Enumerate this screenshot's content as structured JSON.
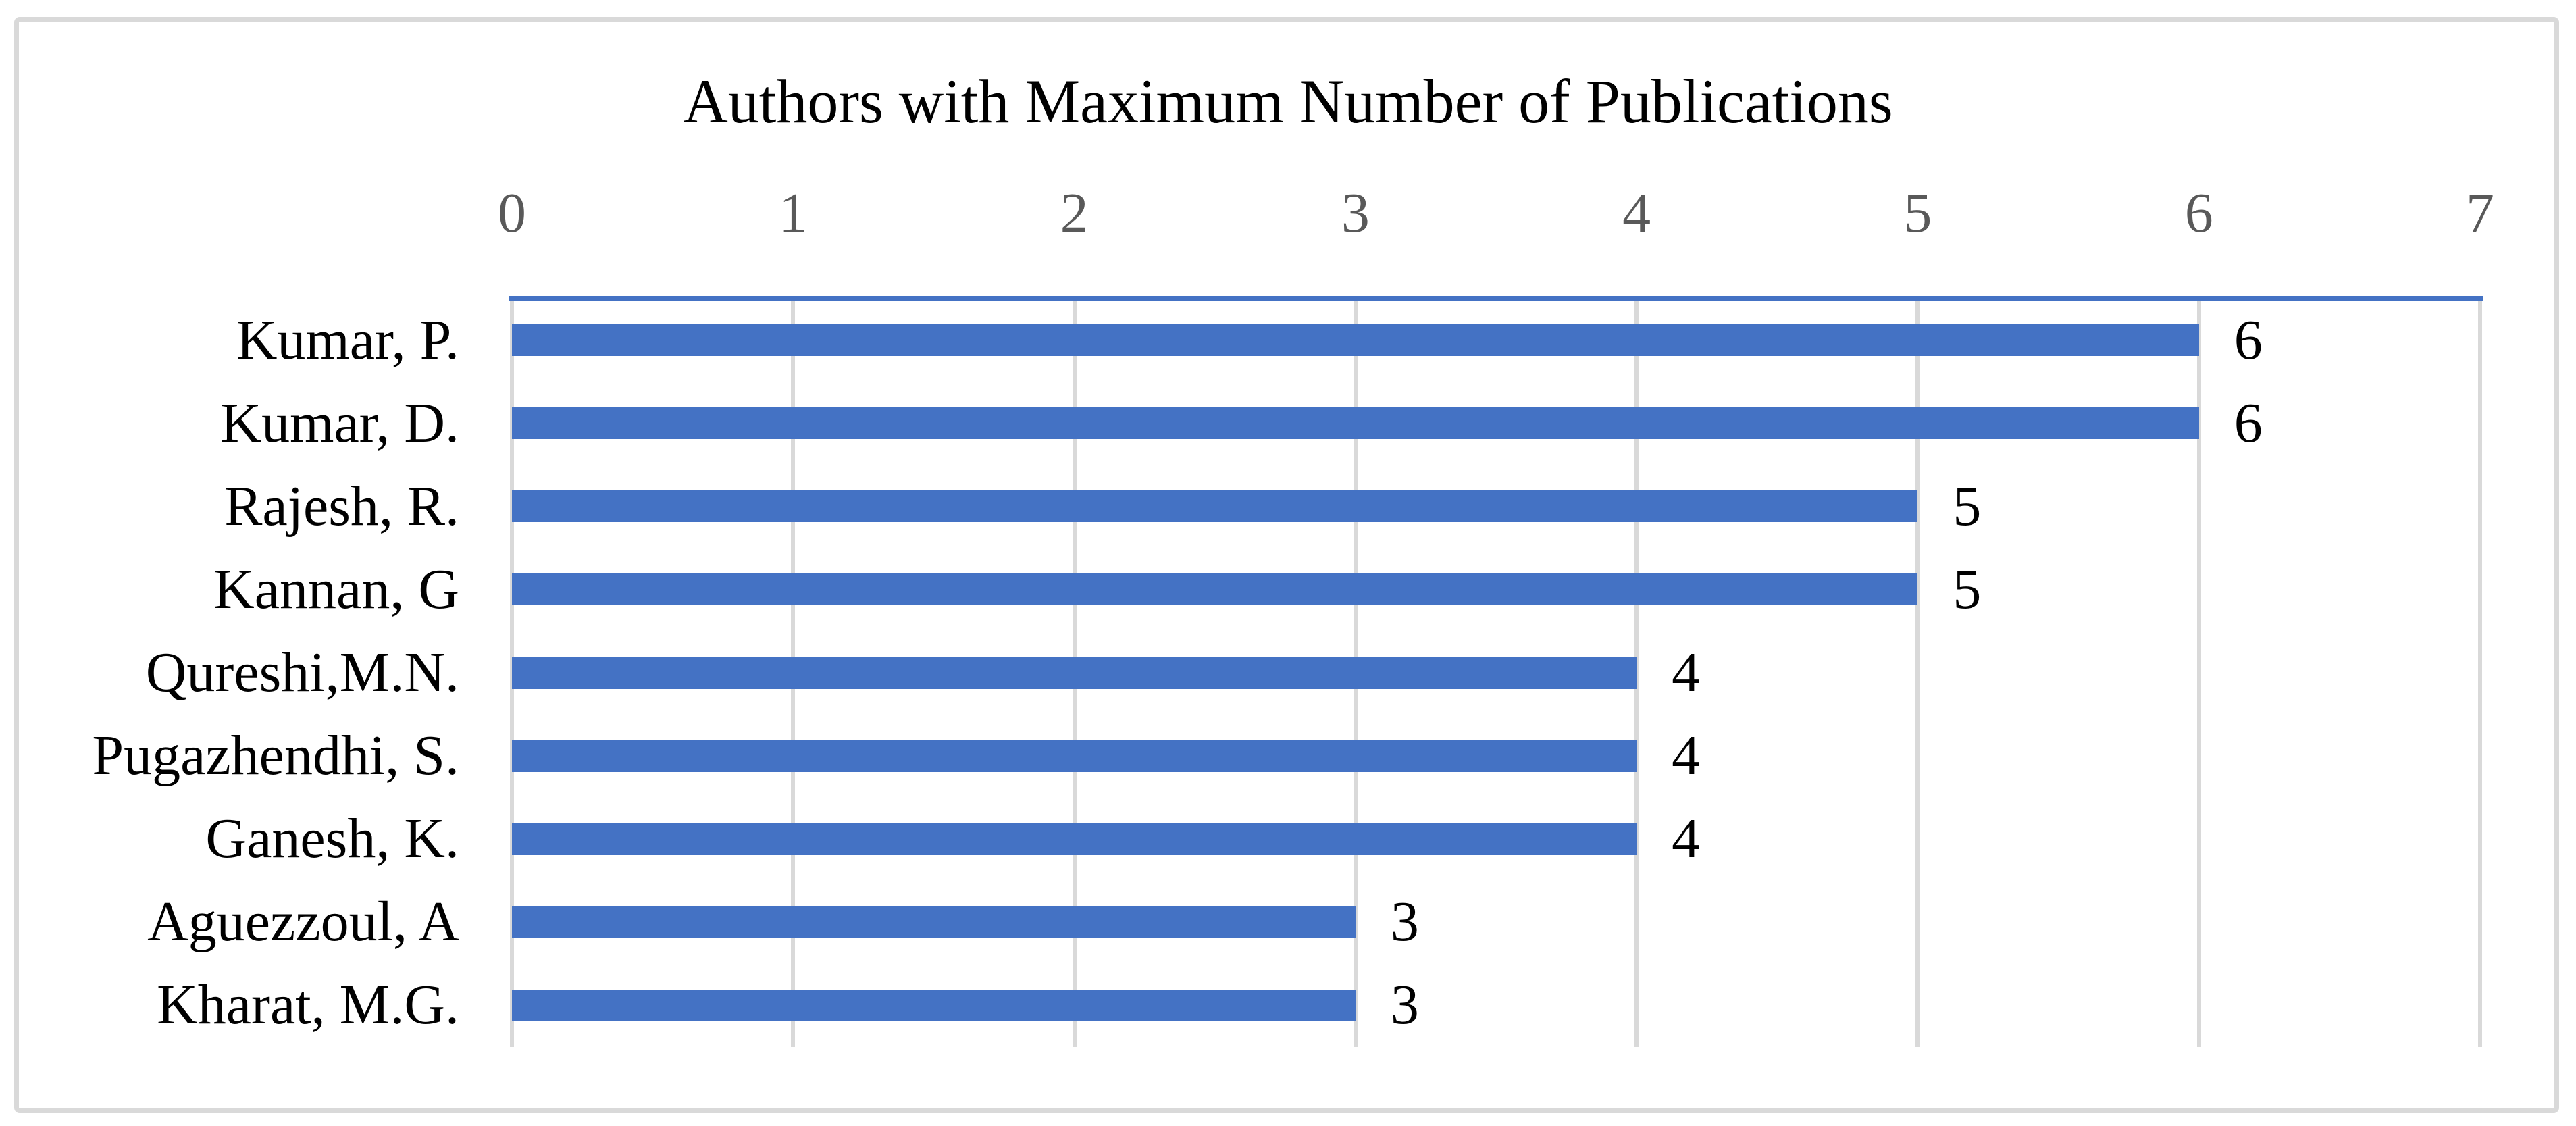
{
  "chart_data": {
    "type": "bar",
    "orientation": "horizontal",
    "title": "Authors with Maximum Number of Publications",
    "categories": [
      "Kumar, P.",
      "Kumar, D.",
      "Rajesh, R.",
      "Kannan, G",
      "Qureshi,M.N.",
      "Pugazhendhi, S.",
      "Ganesh, K.",
      "Aguezzoul, A",
      "Kharat, M.G."
    ],
    "values": [
      6,
      6,
      5,
      5,
      4,
      4,
      4,
      3,
      3
    ],
    "data_labels": [
      "6",
      "6",
      "5",
      "5",
      "4",
      "4",
      "4",
      "3",
      "3"
    ],
    "x_ticks": [
      "0",
      "1",
      "2",
      "3",
      "4",
      "5",
      "6",
      "7"
    ],
    "xlim": [
      0,
      7
    ],
    "value_axis_position": "top",
    "grid": true,
    "legend": "none",
    "colors": {
      "bar": "#4472C4",
      "axis_line": "#4472C4",
      "gridline": "#D9D9D9",
      "figure_border": "#D9D9D9",
      "tick_label": "#595959",
      "text": "#000000",
      "background": "#FFFFFF"
    }
  }
}
